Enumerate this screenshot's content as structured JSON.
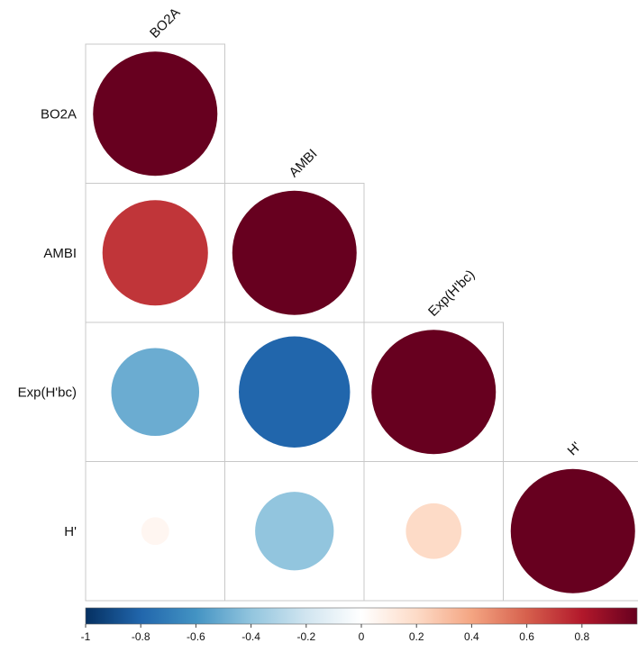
{
  "chart_data": {
    "type": "heatmap",
    "variables": [
      "BO2A",
      "AMBI",
      "Exp(H'bc)",
      "H'"
    ],
    "matrix": [
      [
        1.0,
        null,
        null,
        null
      ],
      [
        0.72,
        1.0,
        null,
        null
      ],
      [
        -0.5,
        -0.8,
        1.0,
        null
      ],
      [
        0.05,
        -0.4,
        0.2,
        1.0
      ]
    ],
    "colorbar": {
      "range": [
        -1,
        1
      ],
      "ticks": [
        -1,
        -0.8,
        -0.6,
        -0.4,
        -0.2,
        0,
        0.2,
        0.4,
        0.6,
        0.8
      ],
      "tick_labels": [
        "-1",
        "-0.8",
        "-0.6",
        "-0.4",
        "-0.2",
        "0",
        "0.2",
        "0.4",
        "0.6",
        "0.8"
      ]
    },
    "colors": {
      "neg_strong": "#053061",
      "neg_mid": "#4393c3",
      "neutral": "#ffffff",
      "pos_mid": "#d6604d",
      "pos_strong": "#67001f",
      "grid": "#c8c8c8"
    },
    "legend_placement": "bottom"
  }
}
